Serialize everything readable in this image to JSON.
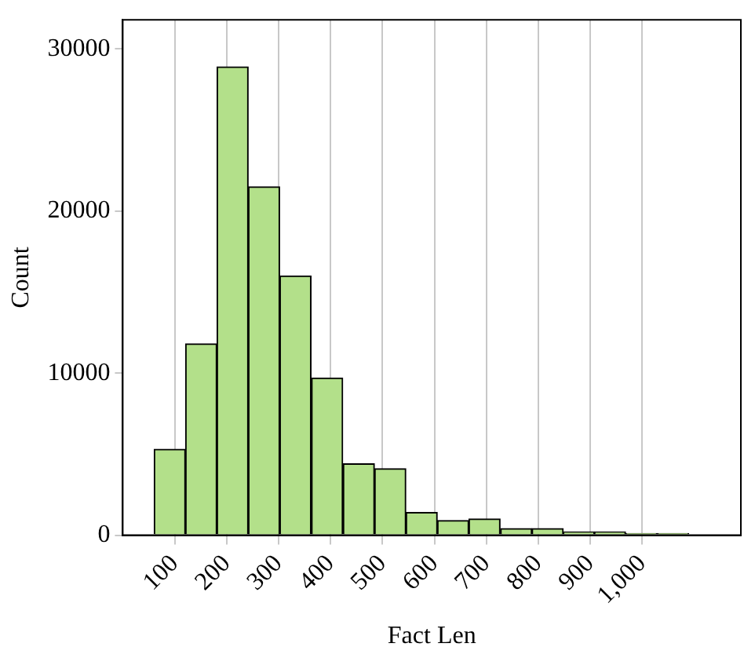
{
  "chart_data": {
    "type": "histogram",
    "xlabel": "Fact Len",
    "ylabel": "Count",
    "bins": [
      60,
      121,
      181,
      242,
      302,
      363,
      424,
      485,
      545,
      606,
      666,
      727,
      788,
      848,
      908,
      968,
      1029,
      1090
    ],
    "values": [
      5300,
      11800,
      28900,
      21500,
      16000,
      9700,
      4400,
      4100,
      1400,
      900,
      1000,
      400,
      400,
      200,
      200,
      100,
      100
    ],
    "color": "#b3e08a",
    "xlim": [
      0,
      1190
    ],
    "xticks": [
      100,
      200,
      300,
      400,
      500,
      600,
      700,
      800,
      900,
      {
        "value": 1000,
        "label": "1,000"
      }
    ],
    "ylim": [
      0,
      31800
    ],
    "yticks": [
      0,
      10000,
      20000,
      30000
    ],
    "grid": "x"
  }
}
